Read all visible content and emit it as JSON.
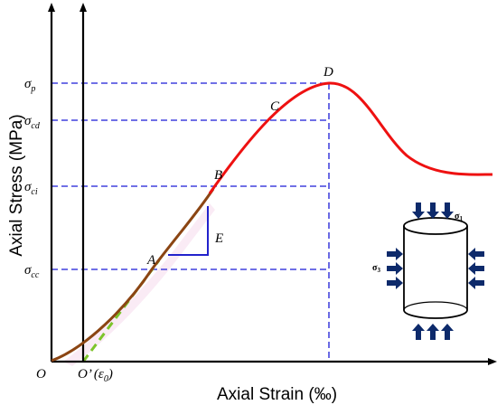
{
  "chart_data": {
    "type": "line",
    "title": "",
    "xlabel": "Axial Strain (‰)",
    "ylabel": "Axial Stress (MPa)",
    "x_ticks": [
      "O",
      "O’ (ε",
      "0",
      ")"
    ],
    "stress_levels": [
      {
        "name": "σ",
        "sub": "p",
        "point": "D"
      },
      {
        "name": "σ",
        "sub": "cd",
        "point": "C"
      },
      {
        "name": "σ",
        "sub": "ci",
        "point": "B"
      },
      {
        "name": "σ",
        "sub": "cc",
        "point": "A"
      }
    ],
    "points": [
      "A",
      "B",
      "C",
      "D"
    ],
    "modulus_label": "E",
    "inset": {
      "sigma1": "σ",
      "sigma1_sub": "1",
      "sigma3": "σ",
      "sigma3_sub": "3"
    },
    "series": [
      {
        "color": "#8B4513",
        "segment": "O to B"
      },
      {
        "color": "#EE1111",
        "segment": "B to end"
      },
      {
        "color": "#7DC42B",
        "segment": "tangent from O’ through A",
        "style": "dashed"
      }
    ],
    "colors": {
      "guide": "#1A1AD6",
      "modulus": "#2222CC",
      "arrow": "#0D2A6B",
      "axis": "#000000"
    }
  }
}
